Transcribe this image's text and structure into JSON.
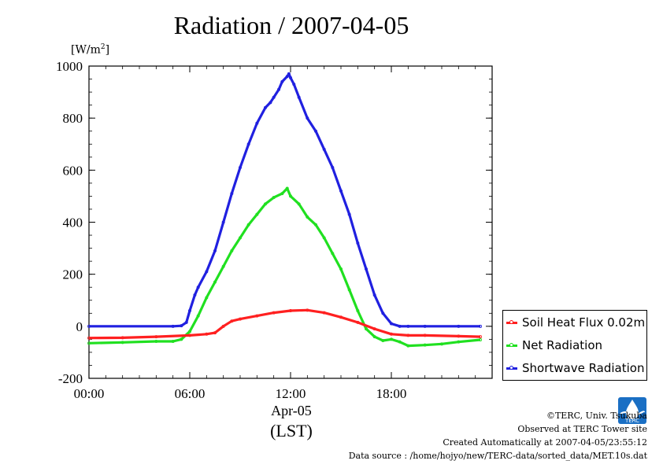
{
  "page": {
    "title": "Radiation / 2007-04-05",
    "y_unit_prefix": "[W/m",
    "y_unit_sup": "2",
    "y_unit_suffix": "]",
    "x_date_label": "Apr-05",
    "x_unit_label": "(LST)",
    "logo_text": "TERC"
  },
  "footer": {
    "line1": "©TERC, Univ. Tsukuba",
    "line2": "Observed at TERC Tower site",
    "line3": "Created Automatically at 2007-04-05/23:55:12",
    "line4": "Data source : /home/hojyo/new/TERC-data/sorted_data/MET.10s.dat"
  },
  "legend": {
    "position": "bottom-right, outside plot",
    "items": [
      {
        "label": "Soil Heat Flux 0.02m",
        "color": "#ff2020"
      },
      {
        "label": "Net Radiation",
        "color": "#20e020"
      },
      {
        "label": "Shortwave Radiation",
        "color": "#2020e0"
      }
    ]
  },
  "chart_data": {
    "type": "line",
    "title": "Radiation / 2007-04-05",
    "xlabel": "(LST)",
    "ylabel": "[W/m2]",
    "xlim": [
      0,
      24
    ],
    "ylim": [
      -200,
      1000
    ],
    "xticks": [
      0,
      6,
      12,
      18
    ],
    "xtick_labels": [
      "00:00",
      "06:00",
      "12:00",
      "18:00"
    ],
    "yticks": [
      -200,
      0,
      200,
      400,
      600,
      800,
      1000
    ],
    "ytick_labels": [
      "-200",
      "0",
      "200",
      "400",
      "600",
      "800",
      "1000"
    ],
    "grid": false,
    "series": [
      {
        "name": "Shortwave Radiation",
        "color": "#2020e0",
        "x": [
          0,
          5.0,
          5.5,
          5.8,
          6.0,
          6.3,
          6.5,
          7.0,
          7.5,
          8.0,
          8.5,
          9.0,
          9.5,
          10.0,
          10.5,
          10.8,
          11.0,
          11.3,
          11.5,
          11.8,
          11.9,
          12.0,
          12.2,
          12.5,
          13.0,
          13.5,
          14.0,
          14.5,
          15.0,
          15.5,
          16.0,
          16.5,
          17.0,
          17.5,
          18.0,
          18.5,
          19.0,
          20.0,
          22.0,
          23.3
        ],
        "y": [
          0,
          0,
          2,
          15,
          60,
          120,
          150,
          210,
          290,
          400,
          510,
          610,
          700,
          780,
          840,
          860,
          880,
          910,
          940,
          960,
          970,
          955,
          930,
          880,
          800,
          750,
          680,
          610,
          520,
          430,
          320,
          220,
          120,
          50,
          10,
          0,
          0,
          0,
          0,
          0
        ]
      },
      {
        "name": "Net Radiation",
        "color": "#20e020",
        "x": [
          0,
          2.0,
          4.0,
          5.0,
          5.5,
          6.0,
          6.5,
          7.0,
          7.5,
          8.0,
          8.5,
          9.0,
          9.5,
          10.0,
          10.5,
          11.0,
          11.5,
          11.8,
          12.0,
          12.5,
          13.0,
          13.5,
          14.0,
          14.5,
          15.0,
          15.5,
          16.0,
          16.5,
          17.0,
          17.5,
          18.0,
          18.5,
          19.0,
          20.0,
          21.0,
          22.0,
          23.3
        ],
        "y": [
          -65,
          -62,
          -58,
          -58,
          -50,
          -20,
          40,
          110,
          170,
          230,
          290,
          340,
          390,
          430,
          470,
          495,
          510,
          530,
          500,
          470,
          420,
          390,
          340,
          280,
          220,
          140,
          60,
          -10,
          -40,
          -55,
          -50,
          -60,
          -75,
          -72,
          -68,
          -60,
          -52
        ]
      },
      {
        "name": "Soil Heat Flux 0.02m",
        "color": "#ff2020",
        "x": [
          0,
          2.0,
          4.0,
          6.0,
          7.0,
          7.5,
          8.0,
          8.5,
          9.0,
          10.0,
          11.0,
          12.0,
          13.0,
          14.0,
          15.0,
          16.0,
          17.0,
          18.0,
          19.0,
          20.0,
          22.0,
          23.3
        ],
        "y": [
          -45,
          -44,
          -40,
          -35,
          -30,
          -25,
          0,
          20,
          28,
          40,
          52,
          60,
          62,
          52,
          35,
          15,
          -10,
          -30,
          -35,
          -35,
          -38,
          -40
        ]
      }
    ]
  }
}
